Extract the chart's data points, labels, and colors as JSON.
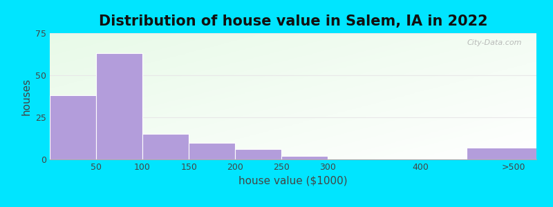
{
  "title": "Distribution of house value in Salem, IA in 2022",
  "xlabel": "house value ($1000)",
  "ylabel": "houses",
  "bar_labels": [
    "50",
    "100",
    "150",
    "200",
    "250",
    "300",
    "400",
    ">500"
  ],
  "bar_values": [
    38,
    63,
    15,
    10,
    6,
    2,
    0,
    7
  ],
  "bar_left_edges": [
    0,
    50,
    100,
    150,
    200,
    250,
    300,
    450
  ],
  "bar_widths": [
    50,
    50,
    50,
    50,
    50,
    50,
    50,
    75
  ],
  "bar_color": "#b39ddb",
  "bar_edgecolor": "#ffffff",
  "ylim": [
    0,
    75
  ],
  "yticks": [
    0,
    25,
    50,
    75
  ],
  "xtick_positions": [
    50,
    100,
    150,
    200,
    250,
    300,
    400,
    500
  ],
  "xtick_labels": [
    "50",
    "100",
    "150",
    "200",
    "250",
    "300",
    "400",
    ">500"
  ],
  "background_outer": "#00e5ff",
  "grid_color": "#e0e0e0",
  "title_fontsize": 15,
  "axis_fontsize": 11,
  "tick_fontsize": 9,
  "watermark_text": "City-Data.com"
}
